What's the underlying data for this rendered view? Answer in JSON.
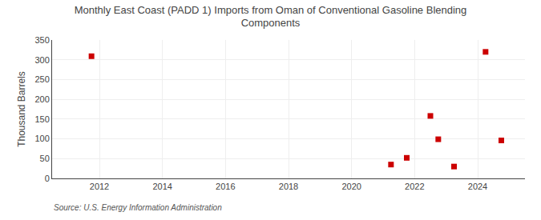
{
  "chart_data": {
    "type": "scatter",
    "title": "Monthly East Coast (PADD 1) Imports from Oman of Conventional Gasoline Blending\nComponents",
    "ylabel": "Thousand Barrels",
    "source": "Source: U.S. Energy Information Administration",
    "x": [
      2011.75,
      2021.25,
      2021.75,
      2022.5,
      2022.75,
      2023.25,
      2024.25,
      2024.75
    ],
    "values": [
      309,
      35,
      52,
      158,
      99,
      30,
      320,
      96
    ],
    "color": "#cc0000",
    "marker": "square",
    "xlim": [
      2010.5,
      2025.5
    ],
    "xticks": [
      2012,
      2014,
      2016,
      2018,
      2020,
      2022,
      2024
    ],
    "ylim": [
      0,
      350
    ],
    "yticks": [
      0,
      50,
      100,
      150,
      200,
      250,
      300,
      350
    ],
    "grid": true
  }
}
